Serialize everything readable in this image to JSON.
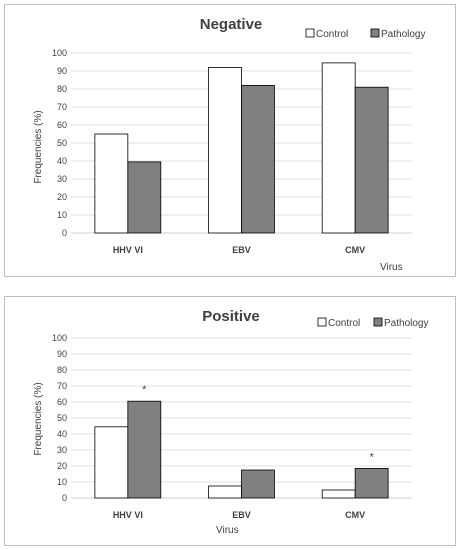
{
  "colors": {
    "control": "#ffffff",
    "pathology": "#808080",
    "grid": "#d9d9d9",
    "bar_stroke": "#000000"
  },
  "chart_data": [
    {
      "type": "bar",
      "title": "Negative",
      "categories": [
        "HHV VI",
        "EBV",
        "CMV"
      ],
      "series": [
        {
          "name": "Control",
          "values": [
            55,
            92,
            94.5
          ]
        },
        {
          "name": "Pathology",
          "values": [
            39.5,
            82,
            81
          ]
        }
      ],
      "xlabel": "Virus",
      "ylabel": "Frequencies (%)",
      "ylim": [
        0,
        100
      ],
      "yticks": [
        "0",
        "10",
        "20",
        "30",
        "40",
        "50",
        "60",
        "70",
        "80",
        "90",
        "100"
      ],
      "grid": true,
      "legend": "top-right",
      "annotations": []
    },
    {
      "type": "bar",
      "title": "Positive",
      "categories": [
        "HHV VI",
        "EBV",
        "CMV"
      ],
      "series": [
        {
          "name": "Control",
          "values": [
            44.5,
            7.5,
            5
          ]
        },
        {
          "name": "Pathology",
          "values": [
            60.5,
            17.5,
            18.5
          ]
        }
      ],
      "xlabel": "Virus",
      "ylabel": "Frequencies (%)",
      "ylim": [
        0,
        100
      ],
      "yticks": [
        "0",
        "10",
        "20",
        "30",
        "40",
        "50",
        "60",
        "70",
        "80",
        "90",
        "100"
      ],
      "grid": true,
      "legend": "top-right",
      "annotations": [
        {
          "category": "HHV VI",
          "series": "Pathology",
          "text": "*"
        },
        {
          "category": "CMV",
          "series": "Pathology",
          "text": "*"
        }
      ]
    }
  ]
}
